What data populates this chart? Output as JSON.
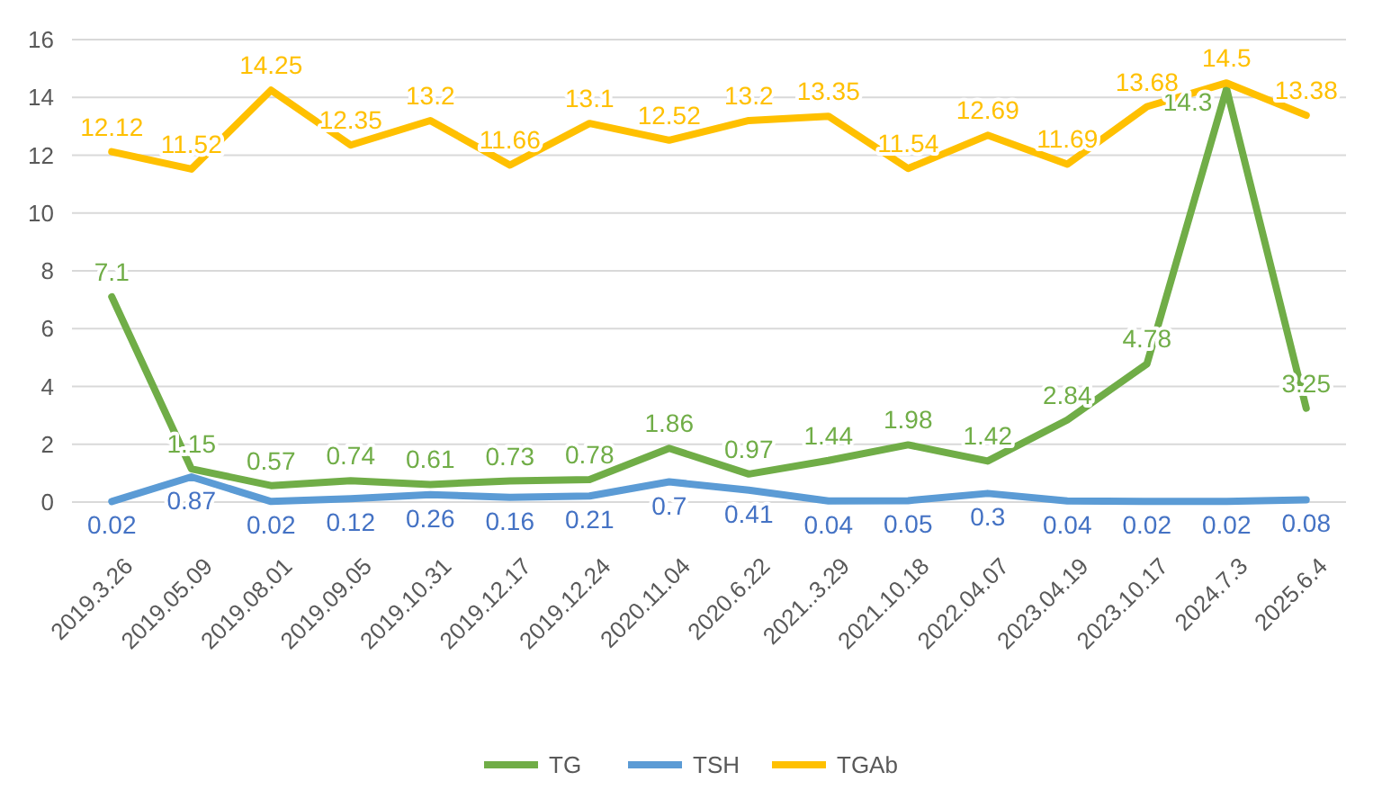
{
  "chart_data": {
    "type": "line",
    "categories": [
      "2019.3.26",
      "2019.05.09",
      "2019.08.01",
      "2019.09.05",
      "2019.10.31",
      "2019.12.17",
      "2019.12.24",
      "2020.11.04",
      "2020.6.22",
      "2021..3.29",
      "2021.10.18",
      "2022.04.07",
      "2023.04.19",
      "2023.10.17",
      "2024.7.3",
      "2025.6.4"
    ],
    "series": [
      {
        "name": "TG",
        "color": "#70ad47",
        "values": [
          7.1,
          1.15,
          0.57,
          0.74,
          0.61,
          0.73,
          0.78,
          1.86,
          0.97,
          1.44,
          1.98,
          1.42,
          2.84,
          4.78,
          14.3,
          3.25
        ]
      },
      {
        "name": "TSH",
        "color": "#5b9bd5",
        "values": [
          0.02,
          0.87,
          0.02,
          0.12,
          0.26,
          0.16,
          0.21,
          0.7,
          0.41,
          0.04,
          0.05,
          0.3,
          0.04,
          0.02,
          0.02,
          0.08
        ]
      },
      {
        "name": "TGAb",
        "color": "#ffc000",
        "values": [
          12.12,
          11.52,
          14.25,
          12.35,
          13.2,
          11.66,
          13.1,
          12.52,
          13.2,
          13.35,
          11.54,
          12.69,
          11.69,
          13.68,
          14.5,
          13.38
        ]
      }
    ],
    "ylim": [
      0,
      16
    ],
    "yticks": [
      0,
      2,
      4,
      6,
      8,
      10,
      12,
      14,
      16
    ],
    "grid": "y",
    "legend": "bottom",
    "data_labels": true,
    "marker": "none",
    "line_style": "solid"
  }
}
